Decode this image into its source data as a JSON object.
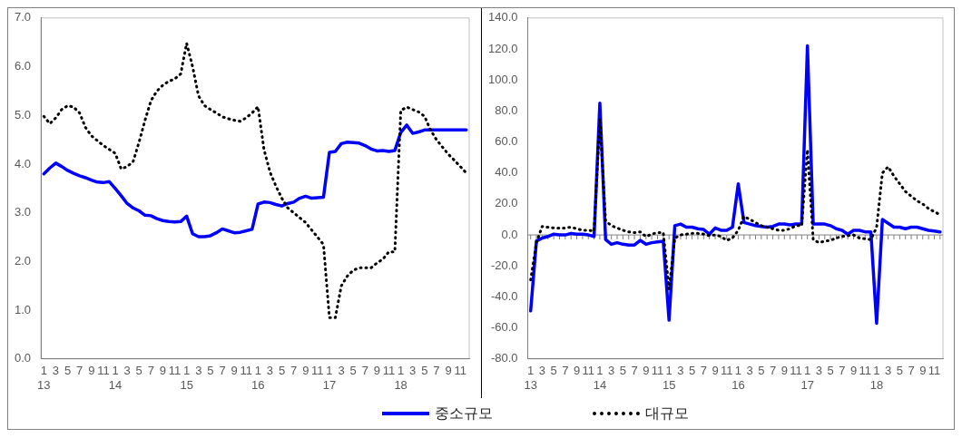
{
  "chart_data": [
    {
      "type": "line",
      "categories": [
        "1\n13",
        null,
        "3",
        null,
        "5",
        null,
        "7",
        null,
        "9",
        null,
        "11",
        null,
        "1\n14",
        null,
        "3",
        null,
        "5",
        null,
        "7",
        null,
        "9",
        null,
        "11",
        null,
        "1\n15",
        null,
        "3",
        null,
        "5",
        null,
        "7",
        null,
        "9",
        null,
        "11",
        null,
        "1\n16",
        null,
        "3",
        null,
        "5",
        null,
        "7",
        null,
        "9",
        null,
        "11",
        null,
        "1\n17",
        null,
        "3",
        null,
        "5",
        null,
        "7",
        null,
        "9",
        null,
        "11",
        null,
        "1\n18",
        null,
        "3",
        null,
        "5",
        null,
        "7",
        null,
        "9",
        null,
        "11",
        null
      ],
      "ylim": [
        0,
        7
      ],
      "yticks": [
        {
          "value": 0,
          "label": "0.0"
        },
        {
          "value": 1,
          "label": "1.0"
        },
        {
          "value": 2,
          "label": "2.0"
        },
        {
          "value": 3,
          "label": "3.0"
        },
        {
          "value": 4,
          "label": "4.0"
        },
        {
          "value": 5,
          "label": "5.0"
        },
        {
          "value": 6,
          "label": "6.0"
        },
        {
          "value": 7,
          "label": "7.0"
        }
      ],
      "grid": false,
      "legend": "bottom",
      "marker": "none",
      "series": [
        {
          "name": "중소규모",
          "color": "#0000ff",
          "line_style": "solid",
          "values": [
            3.8,
            3.92,
            4.02,
            3.95,
            3.87,
            3.81,
            3.76,
            3.72,
            3.67,
            3.63,
            3.62,
            3.64,
            3.5,
            3.35,
            3.19,
            3.1,
            3.04,
            2.95,
            2.94,
            2.88,
            2.84,
            2.82,
            2.81,
            2.82,
            2.93,
            2.57,
            2.51,
            2.51,
            2.53,
            2.59,
            2.67,
            2.63,
            2.59,
            2.6,
            2.63,
            2.66,
            3.18,
            3.22,
            3.21,
            3.17,
            3.14,
            3.19,
            3.22,
            3.3,
            3.34,
            3.3,
            3.31,
            3.32,
            4.24,
            4.26,
            4.42,
            4.45,
            4.44,
            4.43,
            4.38,
            4.31,
            4.27,
            4.28,
            4.26,
            4.28,
            4.65,
            4.8,
            4.63,
            4.66,
            4.7,
            4.7,
            4.7,
            4.7,
            4.7,
            4.7,
            4.7,
            4.7
          ]
        },
        {
          "name": "대규모",
          "color": "#000000",
          "line_style": "dotted",
          "values": [
            4.98,
            4.83,
            4.95,
            5.12,
            5.2,
            5.17,
            5.05,
            4.75,
            4.58,
            4.48,
            4.38,
            4.3,
            4.22,
            3.9,
            3.95,
            4.05,
            4.45,
            4.9,
            5.3,
            5.5,
            5.62,
            5.7,
            5.75,
            5.85,
            6.48,
            6.0,
            5.4,
            5.2,
            5.12,
            5.05,
            4.97,
            4.93,
            4.9,
            4.88,
            4.95,
            5.05,
            5.18,
            4.3,
            3.84,
            3.55,
            3.3,
            3.1,
            3.0,
            2.9,
            2.8,
            2.65,
            2.5,
            2.35,
            0.85,
            0.85,
            1.5,
            1.7,
            1.82,
            1.87,
            1.87,
            1.87,
            1.97,
            2.05,
            2.2,
            2.2,
            5.1,
            5.17,
            5.12,
            5.07,
            4.98,
            4.7,
            4.5,
            4.35,
            4.2,
            4.08,
            3.95,
            3.82
          ]
        }
      ]
    },
    {
      "type": "line",
      "categories": [
        "1\n13",
        null,
        "3",
        null,
        "5",
        null,
        "7",
        null,
        "9",
        null,
        "11",
        null,
        "1\n14",
        null,
        "3",
        null,
        "5",
        null,
        "7",
        null,
        "9",
        null,
        "11",
        null,
        "1\n15",
        null,
        "3",
        null,
        "5",
        null,
        "7",
        null,
        "9",
        null,
        "11",
        null,
        "1\n16",
        null,
        "3",
        null,
        "5",
        null,
        "7",
        null,
        "9",
        null,
        "11",
        null,
        "1\n17",
        null,
        "3",
        null,
        "5",
        null,
        "7",
        null,
        "9",
        null,
        "11",
        null,
        "1\n18",
        null,
        "3",
        null,
        "5",
        null,
        "7",
        null,
        "9",
        null,
        "11",
        null
      ],
      "ylim": [
        -80,
        140
      ],
      "yticks": [
        {
          "value": -80,
          "label": "-80.0"
        },
        {
          "value": -60,
          "label": "-60.0"
        },
        {
          "value": -40,
          "label": "-40.0"
        },
        {
          "value": -20,
          "label": "-20.0"
        },
        {
          "value": 0,
          "label": "0.0"
        },
        {
          "value": 20,
          "label": "20.0"
        },
        {
          "value": 40,
          "label": "40.0"
        },
        {
          "value": 60,
          "label": "60.0"
        },
        {
          "value": 80,
          "label": "80.0"
        },
        {
          "value": 100,
          "label": "100.0"
        },
        {
          "value": 120,
          "label": "120.0"
        },
        {
          "value": 140,
          "label": "140.0"
        }
      ],
      "grid": false,
      "marker": "none",
      "ref_lines": [
        {
          "axis": "y",
          "value": 0,
          "color": "#808080"
        }
      ],
      "series": [
        {
          "color": "#0000ff",
          "line_style": "solid",
          "values": [
            -49,
            -4,
            -2,
            -1,
            0.5,
            0,
            0,
            1,
            0.5,
            0.5,
            0,
            -1,
            85,
            -3,
            -6,
            -5,
            -6,
            -6.5,
            -6.5,
            -3.5,
            -6,
            -5,
            -4.5,
            -4,
            -55,
            6,
            7,
            5,
            5,
            4,
            3.5,
            0.5,
            4.5,
            3,
            3,
            5,
            33,
            8,
            7,
            6,
            5.5,
            5,
            5.5,
            7,
            7,
            6.5,
            7,
            7,
            122,
            7,
            7,
            7,
            6,
            4,
            3,
            0.5,
            3,
            3,
            2,
            2,
            -57,
            10,
            7.5,
            5,
            5,
            4,
            5,
            5,
            4,
            3,
            2.5,
            2
          ]
        },
        {
          "color": "#000000",
          "line_style": "dotted",
          "values": [
            -29,
            -5,
            5.5,
            5,
            4.5,
            4.5,
            4.5,
            5,
            4,
            3,
            3,
            2.5,
            75,
            9,
            6,
            4.5,
            3,
            2,
            1.5,
            2,
            -1,
            0.5,
            1.5,
            1.5,
            -35,
            -2,
            0,
            0.5,
            1,
            1,
            0.5,
            -0.5,
            0,
            -1,
            -3.5,
            -2,
            3,
            12,
            10,
            8,
            6,
            5,
            4,
            3,
            3,
            4,
            6,
            6,
            55,
            -3,
            -5,
            -4,
            -3.5,
            -2,
            -1,
            -0.5,
            0,
            -2,
            -2.5,
            -3,
            5,
            40,
            44,
            38,
            33,
            28,
            25,
            22,
            20,
            17,
            15,
            13
          ]
        }
      ]
    }
  ]
}
